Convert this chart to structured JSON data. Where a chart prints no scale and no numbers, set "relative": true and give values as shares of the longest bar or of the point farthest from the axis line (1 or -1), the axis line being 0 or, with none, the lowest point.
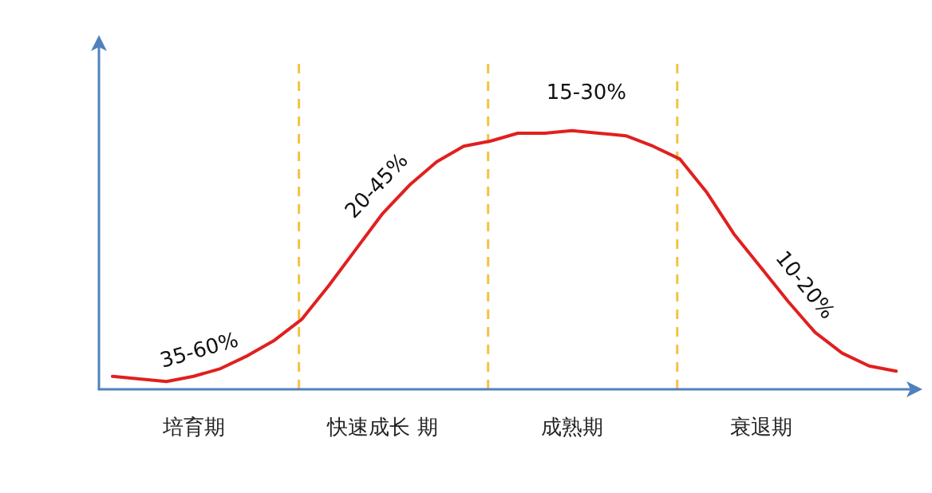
{
  "chart_data": {
    "type": "line",
    "relative": true,
    "categories": [
      null,
      null,
      null,
      "培育期",
      null,
      null,
      null,
      null,
      null,
      null,
      "快速成长 期",
      null,
      null,
      null,
      null,
      null,
      null,
      "成熟期",
      null,
      null,
      null,
      null,
      null,
      null,
      "衰退期",
      null,
      null,
      null,
      null,
      null
    ],
    "series": [
      {
        "color": "#e0201f",
        "values": [
          0.05,
          0.04,
          0.03,
          0.05,
          0.08,
          0.13,
          0.19,
          0.27,
          0.4,
          0.54,
          0.68,
          0.79,
          0.88,
          0.94,
          0.96,
          0.99,
          0.99,
          1,
          0.99,
          0.98,
          0.94,
          0.89,
          0.76,
          0.6,
          0.47,
          0.34,
          0.22,
          0.14,
          0.09,
          0.07
        ]
      }
    ],
    "grid": "x",
    "marker": "none",
    "line_style": "solid",
    "annotations": [
      "35-60%",
      "20-45%",
      "15-30%",
      "10-20%"
    ]
  }
}
